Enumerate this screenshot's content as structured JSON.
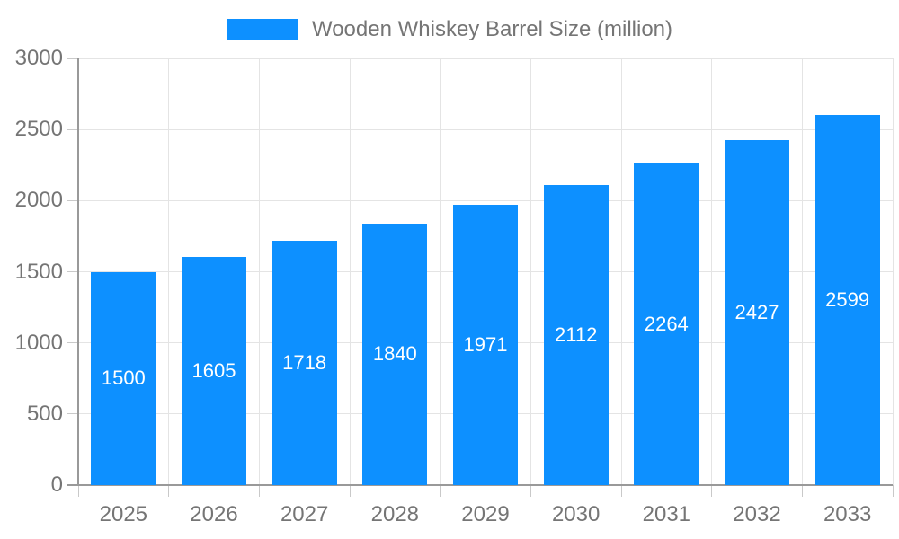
{
  "chart_data": {
    "type": "bar",
    "title": "Wooden Whiskey Barrel Size (million)",
    "legend_label": "Wooden Whiskey Barrel Size (million)",
    "categories": [
      "2025",
      "2026",
      "2027",
      "2028",
      "2029",
      "2030",
      "2031",
      "2032",
      "2033"
    ],
    "values": [
      1500,
      1605,
      1718,
      1840,
      1971,
      2112,
      2264,
      2427,
      2599
    ],
    "value_labels": [
      "1500",
      "1605",
      "1718",
      "1840",
      "1971",
      "2112",
      "2264",
      "2427",
      "2599"
    ],
    "ytick_labels": [
      "0",
      "500",
      "1000",
      "1500",
      "2000",
      "2500",
      "3000"
    ],
    "ylim": [
      0,
      3000
    ],
    "ytick_step": 500,
    "xlabel": "",
    "ylabel": "",
    "grid": true,
    "legend_position": "top-center",
    "colors": {
      "bar": "#0D90FF",
      "value_text": "#ffffff",
      "axis_text": "#757575",
      "grid_line": "#e4e4e4",
      "axis_line": "#999999"
    }
  }
}
